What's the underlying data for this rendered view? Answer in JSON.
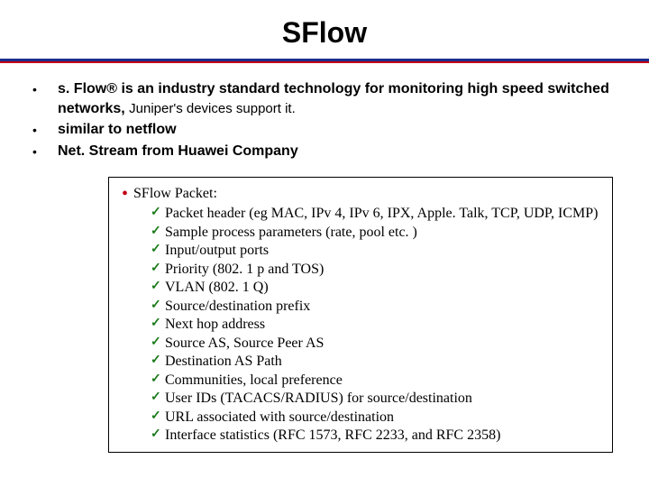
{
  "title": "SFlow",
  "bullets": [
    {
      "bold": "s. Flow® is an industry standard technology for monitoring high speed switched networks, ",
      "normal": "Juniper's devices support it."
    },
    {
      "bold": "similar to netflow",
      "normal": ""
    },
    {
      "bold": "Net. Stream from Huawei Company",
      "normal": ""
    }
  ],
  "box": {
    "header": "SFlow Packet:",
    "items": [
      "Packet header (eg MAC, IPv 4, IPv 6, IPX, Apple. Talk, TCP, UDP, ICMP)",
      "Sample process parameters (rate, pool etc. )",
      "Input/output ports",
      "Priority (802. 1 p and TOS)",
      "VLAN (802. 1 Q)",
      "Source/destination prefix",
      "Next hop address",
      "Source AS, Source Peer AS",
      "Destination AS Path",
      "Communities, local preference",
      "User IDs (TACACS/RADIUS) for source/destination",
      "URL associated with source/destination",
      "Interface statistics (RFC 1573, RFC 2233, and RFC 2358)"
    ]
  },
  "colors": {
    "divider_top": "#1a2f8e",
    "divider_bottom": "#c00018",
    "tick": "#1a7a1a",
    "box_dot": "#c00018"
  }
}
